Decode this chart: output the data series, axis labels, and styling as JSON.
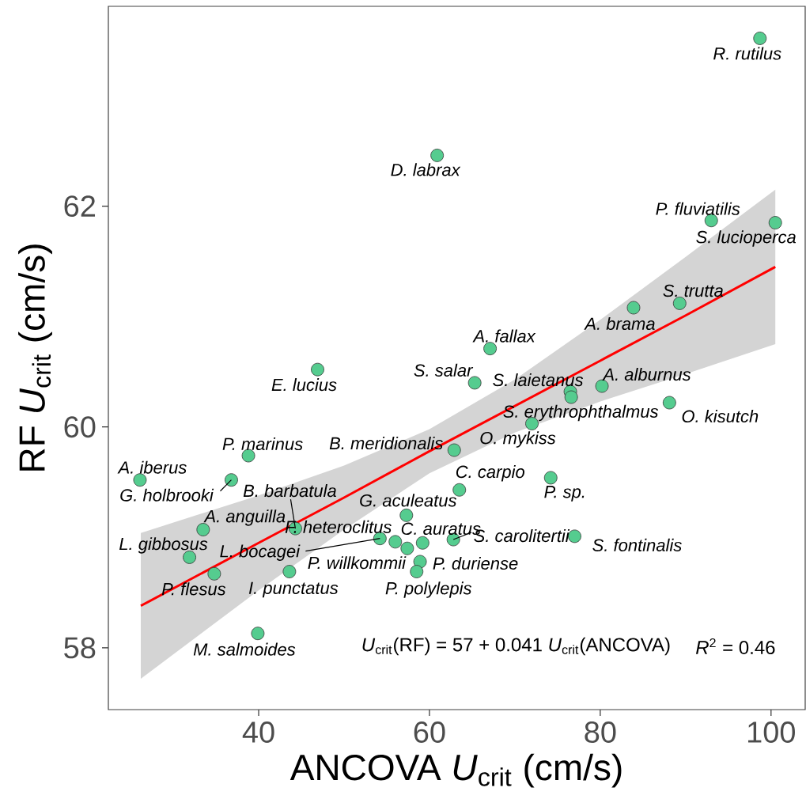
{
  "chart_data": {
    "type": "scatter",
    "xlabel": "ANCOVA *U*$_{crit}$ (cm/s)",
    "ylabel": "RF *U*$_{crit}$ (cm/s)",
    "xlim": [
      22.4,
      104.0
    ],
    "ylim": [
      57.44,
      63.81
    ],
    "xticks": [
      40,
      60,
      80,
      100
    ],
    "yticks": [
      58,
      60,
      62
    ],
    "grid": false,
    "series": [
      {
        "marker": "circle",
        "color": "#55cc8f",
        "x": [
          98.7,
          60.9,
          93.0,
          100.5,
          89.3,
          83.9,
          67.1,
          46.9,
          65.3,
          76.5,
          80.2,
          76.6,
          88.1,
          72.0,
          38.8,
          62.9,
          26.1,
          36.8,
          63.5,
          74.2,
          57.3,
          33.5,
          44.3,
          56.0,
          59.2,
          62.8,
          31.9,
          54.2,
          57.4,
          58.9,
          77.0,
          34.8,
          43.6,
          58.5,
          39.9
        ],
        "values": [
          63.52,
          62.46,
          61.87,
          61.85,
          61.12,
          61.08,
          60.71,
          60.52,
          60.4,
          60.32,
          60.37,
          60.27,
          60.22,
          60.03,
          59.74,
          59.79,
          59.52,
          59.52,
          59.43,
          59.54,
          59.2,
          59.07,
          59.08,
          58.96,
          58.95,
          58.98,
          58.82,
          58.99,
          58.9,
          58.78,
          59.01,
          58.67,
          58.69,
          58.69,
          58.13
        ]
      },
      {
        "type": "line",
        "color": "#ff0000",
        "x": [
          26.2,
          40,
          50,
          60,
          70,
          80,
          90,
          100.5
        ],
        "values": [
          58.38,
          58.95,
          59.36,
          59.78,
          60.19,
          60.6,
          61.01,
          61.45
        ],
        "lower": [
          57.72,
          58.52,
          59.07,
          59.58,
          59.95,
          60.23,
          60.48,
          60.75
        ],
        "upper": [
          59.04,
          59.38,
          59.65,
          59.98,
          60.43,
          60.97,
          61.54,
          62.15
        ]
      }
    ],
    "annotations": [
      {
        "text": "R. rutilus",
        "x": 98.7,
        "y": 63.52
      },
      {
        "text": "D. labrax",
        "x": 60.9,
        "y": 62.46
      },
      {
        "text": "P. fluviatilis",
        "x": 93.0,
        "y": 61.87
      },
      {
        "text": "S. lucioperca",
        "x": 100.5,
        "y": 61.85
      },
      {
        "text": "S. trutta",
        "x": 89.3,
        "y": 61.12
      },
      {
        "text": "A. brama",
        "x": 83.9,
        "y": 61.08
      },
      {
        "text": "A. fallax",
        "x": 67.1,
        "y": 60.71
      },
      {
        "text": "E. lucius",
        "x": 46.9,
        "y": 60.52
      },
      {
        "text": "S. salar",
        "x": 65.3,
        "y": 60.4
      },
      {
        "text": "S. laietanus",
        "x": 76.5,
        "y": 60.32
      },
      {
        "text": "A. alburnus",
        "x": 80.2,
        "y": 60.37
      },
      {
        "text": "S. erythrophthalmus",
        "x": 76.6,
        "y": 60.27
      },
      {
        "text": "O. kisutch",
        "x": 88.1,
        "y": 60.22
      },
      {
        "text": "O. mykiss",
        "x": 72.0,
        "y": 60.03
      },
      {
        "text": "P. marinus",
        "x": 38.8,
        "y": 59.74
      },
      {
        "text": "B. meridionalis",
        "x": 62.9,
        "y": 59.79
      },
      {
        "text": "A. iberus",
        "x": 26.1,
        "y": 59.52
      },
      {
        "text": "G. holbrooki",
        "x": 36.8,
        "y": 59.52
      },
      {
        "text": "C. carpio",
        "x": 63.5,
        "y": 59.43
      },
      {
        "text": "P. sp.",
        "x": 74.2,
        "y": 59.54
      },
      {
        "text": "G. aculeatus",
        "x": 57.3,
        "y": 59.2
      },
      {
        "text": "A. anguilla",
        "x": 33.5,
        "y": 59.07
      },
      {
        "text": "B. barbatula",
        "x": 44.3,
        "y": 59.08
      },
      {
        "text": "F. heteroclitus",
        "x": 56.0,
        "y": 58.96
      },
      {
        "text": "C. auratus",
        "x": 59.2,
        "y": 58.95
      },
      {
        "text": "S. carolitertii",
        "x": 62.8,
        "y": 58.98
      },
      {
        "text": "L. gibbosus",
        "x": 31.9,
        "y": 58.82
      },
      {
        "text": "L. bocagei",
        "x": 54.2,
        "y": 58.99
      },
      {
        "text": "P. willkommii",
        "x": 57.4,
        "y": 58.9
      },
      {
        "text": "P. duriense",
        "x": 58.9,
        "y": 58.78
      },
      {
        "text": "S. fontinalis",
        "x": 77.0,
        "y": 59.01
      },
      {
        "text": "P. flesus",
        "x": 34.8,
        "y": 58.67
      },
      {
        "text": "I. punctatus",
        "x": 43.6,
        "y": 58.69
      },
      {
        "text": "P. polylepis",
        "x": 58.5,
        "y": 58.69
      },
      {
        "text": "M. salmoides",
        "x": 39.9,
        "y": 58.13
      },
      "*U*$_{crit}$(RF) = 57 + 0.041 *U*$_{crit}$(ANCOVA)",
      "*R*$^{2}$ = 0.46"
    ]
  }
}
